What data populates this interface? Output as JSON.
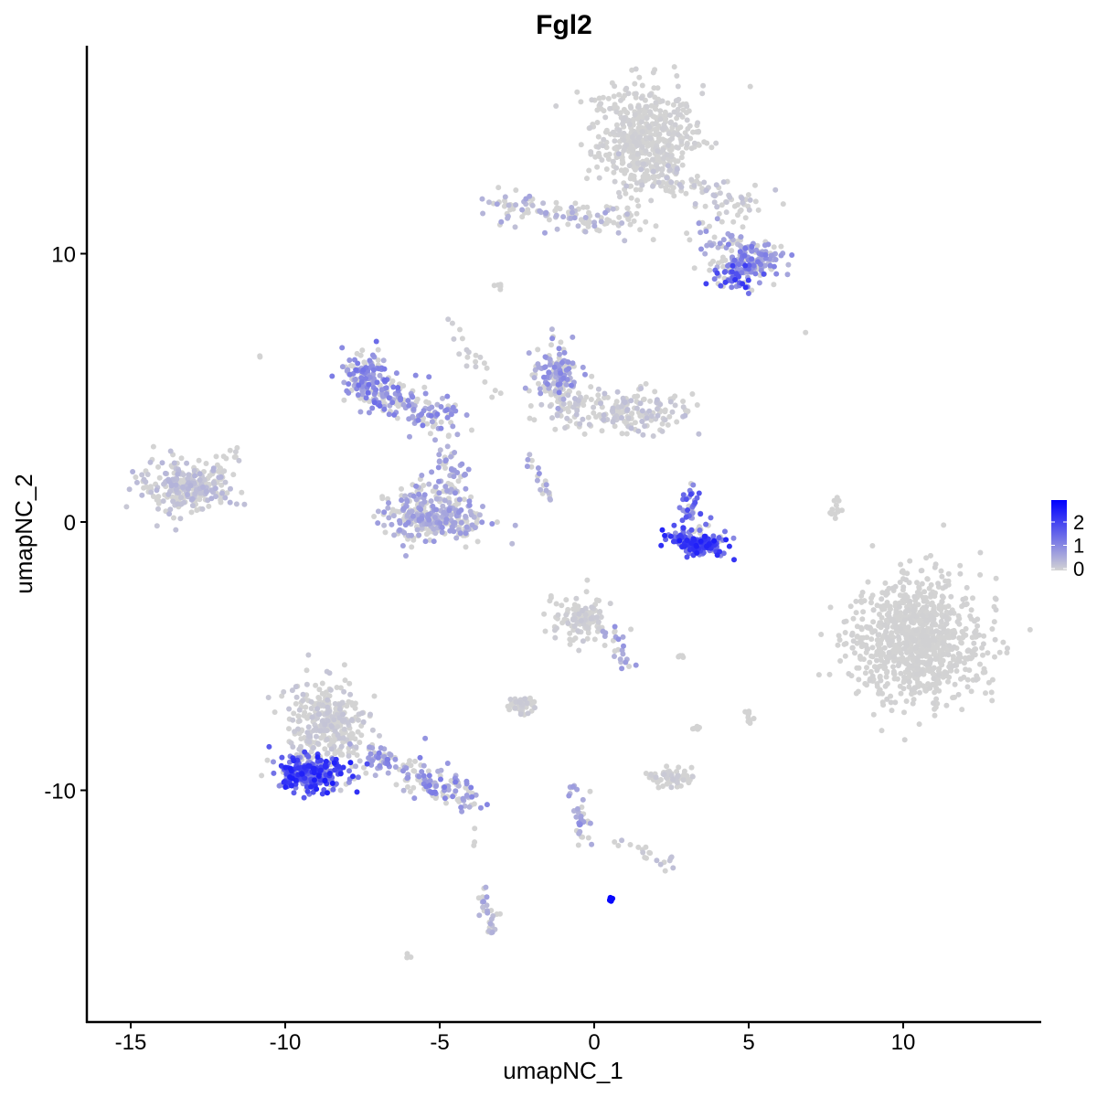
{
  "chart_data": {
    "type": "scatter",
    "title": "Fgl2",
    "xlabel": "umapNC_1",
    "ylabel": "umapNC_2",
    "xlim": [
      -16.4,
      14.4
    ],
    "ylim": [
      -18.6,
      17.75
    ],
    "x_ticks": [
      -15,
      -10,
      -5,
      0,
      5,
      10
    ],
    "x_tick_labels": [
      "-15",
      "-10",
      "-5",
      "0",
      "5",
      "10"
    ],
    "y_ticks": [
      -10,
      0,
      10
    ],
    "y_tick_labels": [
      "-10",
      "0",
      "10"
    ],
    "grid": false,
    "color_scale": {
      "low": "#D3D3D3",
      "high": "#0000FF",
      "min": 0,
      "max": 2.9
    },
    "legend": {
      "position": "right",
      "ticks": [
        0,
        1,
        2
      ],
      "tick_labels": [
        "0",
        "1",
        "2"
      ]
    },
    "note": "clusters approximated: center, spread, point count, mean expression",
    "clusters": [
      {
        "cx": 1.7,
        "cy": 14.3,
        "sx": 1.1,
        "sy": 1.2,
        "n": 500,
        "expr": 0.05
      },
      {
        "from": [
          -3.3,
          11.8
        ],
        "to": [
          1.5,
          11.1
        ],
        "sd": 0.3,
        "n": 120,
        "expr": 0.45
      },
      {
        "from": [
          1.5,
          13.0
        ],
        "to": [
          5.3,
          11.6
        ],
        "sd": 0.35,
        "n": 100,
        "expr": 0.2
      },
      {
        "from": [
          3.5,
          10.8
        ],
        "to": [
          5.8,
          9.6
        ],
        "sd": 0.35,
        "n": 80,
        "expr": 0.6
      },
      {
        "cx": 5.0,
        "cy": 9.6,
        "sx": 0.6,
        "sy": 0.45,
        "n": 120,
        "expr": 0.9
      },
      {
        "cx": 4.4,
        "cy": 9.1,
        "sx": 0.4,
        "sy": 0.3,
        "n": 40,
        "expr": 1.5
      },
      {
        "cx": -13.3,
        "cy": 1.3,
        "sx": 0.9,
        "sy": 0.6,
        "n": 260,
        "expr": 0.3
      },
      {
        "from": [
          -12.2,
          1.8
        ],
        "to": [
          -11.6,
          2.8
        ],
        "sd": 0.15,
        "n": 15,
        "expr": 0.05
      },
      {
        "cx": -7.4,
        "cy": 5.4,
        "sx": 0.5,
        "sy": 0.7,
        "n": 130,
        "expr": 0.95
      },
      {
        "from": [
          -7.0,
          4.8
        ],
        "to": [
          -4.7,
          3.8
        ],
        "sd": 0.35,
        "n": 130,
        "expr": 0.8
      },
      {
        "from": [
          -4.8,
          3.0
        ],
        "to": [
          -4.5,
          1.5
        ],
        "sd": 0.2,
        "n": 30,
        "expr": 0.6
      },
      {
        "cx": -5.2,
        "cy": 0.1,
        "sx": 1.0,
        "sy": 0.5,
        "n": 300,
        "expr": 0.6
      },
      {
        "from": [
          -6.3,
          1.0
        ],
        "to": [
          -4.0,
          1.3
        ],
        "sd": 0.3,
        "n": 60,
        "expr": 0.6
      },
      {
        "cx": -1.2,
        "cy": 5.6,
        "sx": 0.5,
        "sy": 0.6,
        "n": 120,
        "expr": 0.75
      },
      {
        "from": [
          -1.5,
          4.3
        ],
        "to": [
          2.5,
          4.1
        ],
        "sd": 0.4,
        "n": 220,
        "expr": 0.2
      },
      {
        "cx": 3.4,
        "cy": -0.8,
        "sx": 0.55,
        "sy": 0.25,
        "n": 160,
        "expr": 1.7
      },
      {
        "from": [
          2.5,
          -0.3
        ],
        "to": [
          3.2,
          -0.9
        ],
        "sd": 0.15,
        "n": 25,
        "expr": 1.5
      },
      {
        "from": [
          3.0,
          1.2
        ],
        "to": [
          3.4,
          -0.3
        ],
        "sd": 0.2,
        "n": 40,
        "expr": 1.3
      },
      {
        "cx": 10.4,
        "cy": -4.4,
        "sx": 1.3,
        "sy": 1.4,
        "n": 900,
        "expr": 0.02
      },
      {
        "cx": -0.4,
        "cy": -3.6,
        "sx": 0.6,
        "sy": 0.5,
        "n": 130,
        "expr": 0.1
      },
      {
        "from": [
          0.3,
          -3.8
        ],
        "to": [
          1.1,
          -5.4
        ],
        "sd": 0.15,
        "n": 25,
        "expr": 0.6
      },
      {
        "cx": -8.6,
        "cy": -7.5,
        "sx": 0.8,
        "sy": 1.0,
        "n": 320,
        "expr": 0.15
      },
      {
        "cx": -9.2,
        "cy": -9.4,
        "sx": 0.7,
        "sy": 0.4,
        "n": 260,
        "expr": 1.7
      },
      {
        "from": [
          -7.5,
          -8.6
        ],
        "to": [
          -4.0,
          -10.4
        ],
        "sd": 0.3,
        "n": 160,
        "expr": 0.8
      },
      {
        "cx": -2.4,
        "cy": -6.8,
        "sx": 0.3,
        "sy": 0.2,
        "n": 50,
        "expr": 0.1
      },
      {
        "cx": 2.5,
        "cy": -9.5,
        "sx": 0.4,
        "sy": 0.2,
        "n": 70,
        "expr": 0.1
      },
      {
        "from": [
          -0.6,
          -9.6
        ],
        "to": [
          -0.3,
          -12.0
        ],
        "sd": 0.15,
        "n": 35,
        "expr": 0.7
      },
      {
        "from": [
          0.5,
          -11.8
        ],
        "to": [
          2.5,
          -12.8
        ],
        "sd": 0.2,
        "n": 20,
        "expr": 0.2
      },
      {
        "cx": 0.55,
        "cy": -14.05,
        "sx": 0.05,
        "sy": 0.05,
        "n": 10,
        "expr": 2.8
      },
      {
        "from": [
          -3.7,
          -13.7
        ],
        "to": [
          -3.3,
          -15.3
        ],
        "sd": 0.15,
        "n": 30,
        "expr": 0.5
      },
      {
        "from": [
          -4.7,
          7.5
        ],
        "to": [
          -3.0,
          4.5
        ],
        "sd": 0.15,
        "n": 20,
        "expr": 0.1
      },
      {
        "from": [
          -2.2,
          2.5
        ],
        "to": [
          -1.3,
          0.8
        ],
        "sd": 0.1,
        "n": 20,
        "expr": 0.6
      },
      {
        "from": [
          7.9,
          0.9
        ],
        "to": [
          7.7,
          0.0
        ],
        "sd": 0.08,
        "n": 12,
        "expr": 0
      },
      {
        "cx": 5.0,
        "cy": -7.3,
        "sx": 0.15,
        "sy": 0.15,
        "n": 10,
        "expr": 0
      },
      {
        "cx": 3.3,
        "cy": -7.7,
        "sx": 0.1,
        "sy": 0.1,
        "n": 5,
        "expr": 0
      },
      {
        "cx": 2.8,
        "cy": -5.0,
        "sx": 0.1,
        "sy": 0.05,
        "n": 5,
        "expr": 0
      },
      {
        "cx": -3.0,
        "cy": 8.8,
        "sx": 0.1,
        "sy": 0.1,
        "n": 5,
        "expr": 0.3
      },
      {
        "cx": -10.8,
        "cy": 6.1,
        "sx": 0.05,
        "sy": 0.05,
        "n": 2,
        "expr": 0
      },
      {
        "cx": 6.8,
        "cy": 7.1,
        "sx": 0.05,
        "sy": 0.05,
        "n": 1,
        "expr": 0
      },
      {
        "cx": -6.0,
        "cy": -16.2,
        "sx": 0.1,
        "sy": 0.05,
        "n": 3,
        "expr": 0
      },
      {
        "cx": -3.9,
        "cy": -12.0,
        "sx": 0.05,
        "sy": 0.3,
        "n": 3,
        "expr": 0
      }
    ]
  }
}
